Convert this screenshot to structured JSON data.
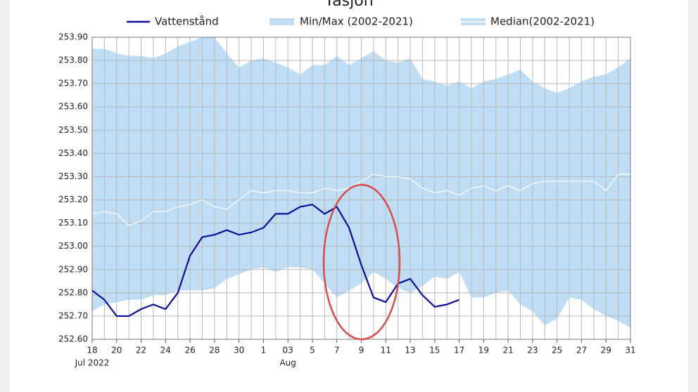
{
  "chart_data": {
    "type": "line",
    "title": "Tåsjön",
    "categories": [
      "18",
      null,
      "20",
      null,
      "22",
      null,
      "24",
      null,
      "26",
      null,
      "28",
      null,
      "30",
      null,
      "1",
      null,
      "03",
      null,
      "5",
      null,
      "7",
      null,
      "9",
      null,
      "11",
      null,
      "13",
      null,
      "15",
      null,
      "17",
      null,
      "19",
      null,
      "21",
      null,
      "23",
      null,
      "25",
      null,
      "27",
      null,
      "29",
      null,
      "31"
    ],
    "period_labels": [
      "Jul 2022",
      "Aug"
    ],
    "series": [
      {
        "name": "Vattenstånd",
        "color": "#0c0c9c",
        "values": [
          252.81,
          252.77,
          252.7,
          252.7,
          252.73,
          252.75,
          252.73,
          252.8,
          252.96,
          253.04,
          253.05,
          253.07,
          253.05,
          253.06,
          253.08,
          253.14,
          253.14,
          253.17,
          253.18,
          253.14,
          253.17,
          253.08,
          252.92,
          252.78,
          252.76,
          252.84,
          252.86,
          252.79,
          252.74,
          252.75,
          252.77,
          null,
          null,
          null,
          null,
          null,
          null,
          null,
          null,
          null,
          null,
          null,
          null,
          null,
          null
        ]
      },
      {
        "name": "Min/Max (2002-2021)",
        "color": "#bfdef5",
        "max": [
          253.85,
          253.85,
          253.83,
          253.82,
          253.82,
          253.81,
          253.83,
          253.86,
          253.88,
          253.9,
          253.9,
          253.83,
          253.77,
          253.8,
          253.81,
          253.79,
          253.77,
          253.74,
          253.78,
          253.78,
          253.82,
          253.78,
          253.81,
          253.84,
          253.8,
          253.79,
          253.81,
          253.72,
          253.71,
          253.69,
          253.71,
          253.68,
          253.71,
          253.72,
          253.74,
          253.76,
          253.71,
          253.68,
          253.66,
          253.68,
          253.71,
          253.73,
          253.74,
          253.77,
          253.81
        ],
        "min": [
          252.72,
          252.75,
          252.76,
          252.77,
          252.77,
          252.79,
          252.79,
          252.81,
          252.81,
          252.81,
          252.82,
          252.86,
          252.88,
          252.9,
          252.91,
          252.89,
          252.91,
          252.91,
          252.9,
          252.84,
          252.78,
          252.81,
          252.84,
          252.89,
          252.86,
          252.82,
          252.8,
          252.83,
          252.87,
          252.86,
          252.89,
          252.78,
          252.78,
          252.8,
          252.81,
          252.75,
          252.72,
          252.66,
          252.69,
          252.78,
          252.77,
          252.73,
          252.7,
          252.68,
          252.65
        ]
      },
      {
        "name": "Median(2002-2021)",
        "color": "#ffffff",
        "values": [
          253.14,
          253.15,
          253.14,
          253.09,
          253.11,
          253.15,
          253.15,
          253.17,
          253.18,
          253.2,
          253.17,
          253.16,
          253.2,
          253.24,
          253.23,
          253.24,
          253.24,
          253.23,
          253.23,
          253.25,
          253.24,
          253.25,
          253.28,
          253.31,
          253.3,
          253.3,
          253.29,
          253.25,
          253.23,
          253.24,
          253.22,
          253.25,
          253.26,
          253.24,
          253.26,
          253.24,
          253.27,
          253.28,
          253.28,
          253.28,
          253.28,
          253.28,
          253.24,
          253.31,
          253.31
        ]
      }
    ],
    "ylim": [
      252.6,
      253.9
    ],
    "yticks": [
      {
        "value": 252.6,
        "label": "252.60"
      },
      {
        "value": 252.7,
        "label": "252.70"
      },
      {
        "value": 252.8,
        "label": "252.80"
      },
      {
        "value": 252.9,
        "label": "252.90"
      },
      {
        "value": 253.0,
        "label": "253.00"
      },
      {
        "value": 253.1,
        "label": "253.10"
      },
      {
        "value": 253.2,
        "label": "253.20"
      },
      {
        "value": 253.3,
        "label": "253.30"
      },
      {
        "value": 253.4,
        "label": "253.40"
      },
      {
        "value": 253.5,
        "label": "253.50"
      },
      {
        "value": 253.6,
        "label": "253.60"
      },
      {
        "value": 253.7,
        "label": "253.70"
      },
      {
        "value": 253.8,
        "label": "253.80"
      },
      {
        "value": 253.9,
        "label": "253.90"
      }
    ],
    "grid": true
  }
}
